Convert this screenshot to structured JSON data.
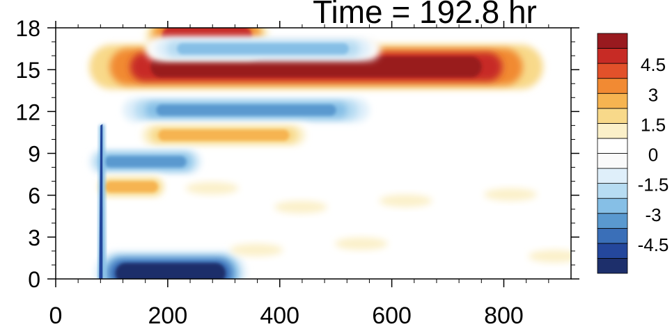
{
  "chart_data": {
    "type": "heatmap",
    "title": "Time = 192.8 hr",
    "xlabel": "",
    "ylabel": "",
    "xlim": [
      0,
      920
    ],
    "ylim": [
      0,
      18
    ],
    "x_ticks": [
      "0",
      "200",
      "400",
      "600",
      "800"
    ],
    "y_ticks": [
      "0",
      "3",
      "6",
      "9",
      "12",
      "15",
      "18"
    ],
    "colorbar": {
      "ticks": [
        "4.5",
        "3",
        "1.5",
        "0",
        "-1.5",
        "-3",
        "-4.5"
      ],
      "levels": [
        -5.25,
        -4.5,
        -3.75,
        -3,
        -2.25,
        -1.5,
        -0.75,
        0,
        0.75,
        1.5,
        2.25,
        3,
        3.75,
        4.5,
        5.25
      ],
      "colors": [
        "#1d2f6b",
        "#24479c",
        "#3a6fb8",
        "#5a99cf",
        "#86bfe6",
        "#b7dcf2",
        "#dfeffa",
        "#fafafa",
        "#ffffff",
        "#fbf0c9",
        "#f8d98a",
        "#f6b451",
        "#f18a33",
        "#e2512a",
        "#c72b25",
        "#991a1f"
      ]
    },
    "features": [
      {
        "feature": "main positive jet",
        "x_range": [
          60,
          870
        ],
        "y_center": 15.2,
        "peak": 6.0
      },
      {
        "feature": "upper positive band",
        "x_range": [
          160,
          380
        ],
        "y_center": 17.4,
        "peak": 4.8
      },
      {
        "feature": "negative band below jet",
        "x_range": [
          120,
          560
        ],
        "y_center": 12.1,
        "peak": -3.5
      },
      {
        "feature": "negative band above jet",
        "x_range": [
          160,
          580
        ],
        "y_center": 16.5,
        "peak": -3.0
      },
      {
        "feature": "positive band",
        "x_range": [
          140,
          460
        ],
        "y_center": 10.3,
        "peak": 2.8
      },
      {
        "feature": "negative band",
        "x_range": [
          60,
          260
        ],
        "y_center": 8.4,
        "peak": -3.4
      },
      {
        "feature": "positive blob",
        "x_range": [
          70,
          200
        ],
        "y_center": 6.6,
        "peak": 2.6
      },
      {
        "feature": "negative near-surface band",
        "x_range": [
          70,
          340
        ],
        "y_center": 0.4,
        "peak": -6.0
      },
      {
        "feature": "negative wedge",
        "x_range": [
          55,
          80
        ],
        "y_range": [
          0,
          11
        ],
        "peak": -5.0
      },
      {
        "feature": "weak positive patches",
        "x_range": [
          200,
          920
        ],
        "y_range": [
          0.5,
          8
        ],
        "peak": 0.8
      }
    ]
  }
}
